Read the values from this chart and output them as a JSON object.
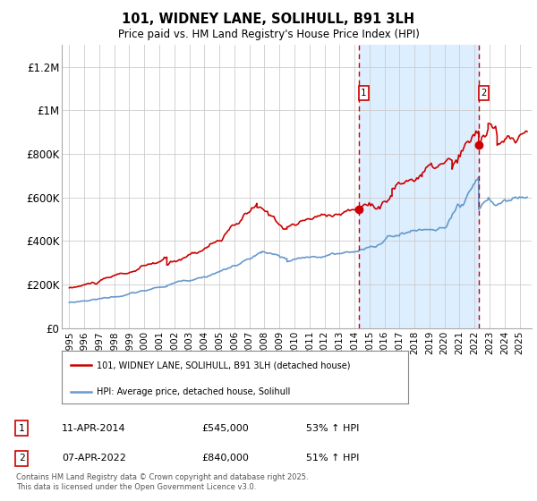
{
  "title": "101, WIDNEY LANE, SOLIHULL, B91 3LH",
  "subtitle": "Price paid vs. HM Land Registry's House Price Index (HPI)",
  "red_label": "101, WIDNEY LANE, SOLIHULL, B91 3LH (detached house)",
  "blue_label": "HPI: Average price, detached house, Solihull",
  "annotation1": {
    "label": "1",
    "date": "11-APR-2014",
    "price": 545000,
    "pct": "53% ↑ HPI"
  },
  "annotation2": {
    "label": "2",
    "date": "07-APR-2022",
    "price": 840000,
    "pct": "51% ↑ HPI"
  },
  "footer": "Contains HM Land Registry data © Crown copyright and database right 2025.\nThis data is licensed under the Open Government Licence v3.0.",
  "red_color": "#cc0000",
  "blue_color": "#6699cc",
  "shade_color": "#ddeeff",
  "grid_color": "#cccccc",
  "background_color": "#ffffff",
  "ylim": [
    0,
    1300000
  ],
  "yticks": [
    0,
    200000,
    400000,
    600000,
    800000,
    1000000,
    1200000
  ],
  "ytick_labels": [
    "£0",
    "£200K",
    "£400K",
    "£600K",
    "£800K",
    "£1M",
    "£1.2M"
  ],
  "vline1_x": 2014.27,
  "vline2_x": 2022.27,
  "point1_x": 2014.27,
  "point1_y": 545000,
  "point2_x": 2022.27,
  "point2_y": 840000,
  "xlim_left": 1994.5,
  "xlim_right": 2025.8
}
